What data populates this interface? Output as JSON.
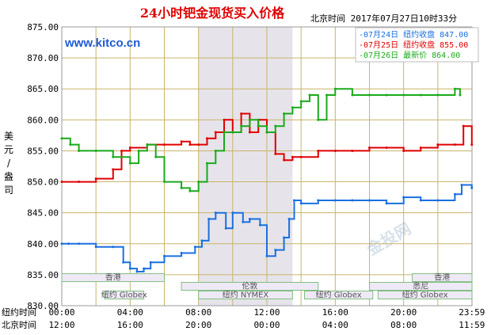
{
  "title": "24小时钯金现货买入价格",
  "datetime_label": "北京时间  2017年07月27日10时33分",
  "site": "www.kitco.cn",
  "y_axis_label": "美元/盎司",
  "x_row_labels": [
    "纽约时间",
    "北京时间"
  ],
  "watermark": "金投网",
  "markets": [
    {
      "name": "香港",
      "start": 0,
      "end": 6
    },
    {
      "name": "伦敦",
      "start": 7,
      "end": 15
    },
    {
      "name": "纽约 Globex",
      "start": 2.5,
      "end": 4.8
    },
    {
      "name": "纽约 NYMEX",
      "start": 8,
      "end": 13.5
    },
    {
      "name": "纽约 Globex",
      "start": 14.2,
      "end": 18.2
    },
    {
      "name": "纽约 Globex",
      "start": 18.5,
      "end": 24
    },
    {
      "name": "悉尼",
      "start": 18,
      "end": 24
    },
    {
      "name": "香港",
      "start": 20.5,
      "end": 24
    }
  ],
  "chart_data": {
    "type": "line",
    "title": "24小时钯金现货买入价格",
    "ylabel": "美元/盎司",
    "ylim": [
      830,
      875
    ],
    "yticks": [
      875,
      870,
      865,
      860,
      855,
      850,
      845,
      840,
      835,
      830
    ],
    "xlim": [
      0,
      24
    ],
    "x_ticks_newyork": [
      "00:00",
      "04:00",
      "08:00",
      "12:00",
      "16:00",
      "20:00",
      "23:59"
    ],
    "x_ticks_beijing": [
      "12:00",
      "16:00",
      "20:00",
      "00:00",
      "04:00",
      "08:00",
      "11:59"
    ],
    "shaded_range": [
      8,
      13.5
    ],
    "grid": true,
    "legend_position": "top-right",
    "series": [
      {
        "name": "07月24日 纽约收盘 847.00",
        "color": "#1a6fe0",
        "x": [
          0,
          0.4,
          1,
          2,
          3,
          3.6,
          4,
          4.4,
          4.8,
          5.2,
          6,
          7,
          7.8,
          8.2,
          8.6,
          9,
          9.6,
          10,
          10.6,
          11,
          11.6,
          12,
          12.5,
          13,
          13.3,
          13.6,
          14,
          15,
          16,
          17,
          18,
          19,
          20,
          21,
          22,
          23,
          23.4,
          23.99
        ],
        "y": [
          840,
          840,
          840,
          839.5,
          839.5,
          837,
          836,
          835.5,
          836,
          837,
          838,
          838.5,
          839.5,
          840.5,
          844,
          845,
          842.5,
          845,
          843.5,
          844,
          843,
          838,
          839,
          841,
          844,
          847,
          846.5,
          847,
          847,
          847,
          847,
          846.5,
          847.5,
          847,
          847,
          848,
          849.5,
          849
        ]
      },
      {
        "name": "07月25日 纽约收盘 855.00",
        "color": "#e00000",
        "x": [
          0,
          1,
          2,
          3,
          3.5,
          4,
          5,
          6,
          7,
          7.5,
          8,
          8.5,
          9,
          9.5,
          10,
          10.5,
          11,
          11.5,
          12,
          12.5,
          13,
          13.5,
          14,
          15,
          16,
          17,
          18,
          19,
          20,
          21,
          22,
          23,
          23.5,
          23.99
        ],
        "y": [
          850,
          850,
          850.5,
          852,
          855,
          855.5,
          856,
          856,
          856.5,
          856,
          856,
          857,
          858,
          860,
          858,
          861,
          858,
          860,
          858,
          854.5,
          853.5,
          854,
          854,
          855,
          855,
          855,
          855.5,
          855.5,
          855,
          855.5,
          856,
          856,
          859,
          856
        ]
      },
      {
        "name": "07月26日 最新价 864.00",
        "color": "#1aaa1a",
        "x": [
          0,
          0.5,
          1,
          2,
          3,
          4,
          4.5,
          5,
          5.5,
          6,
          7,
          7.5,
          8,
          8.5,
          9,
          9.5,
          10,
          10.5,
          11,
          11.5,
          12,
          12.5,
          13,
          13.5,
          14,
          14.5,
          15,
          15.5,
          16,
          17,
          18,
          19,
          20,
          21,
          22,
          23,
          23.3
        ],
        "y": [
          857,
          856,
          855,
          855,
          854,
          853,
          855,
          856,
          854,
          850,
          849,
          848.5,
          850,
          853,
          855,
          858,
          858,
          859,
          860,
          859,
          858,
          859,
          861,
          862,
          863,
          864,
          860,
          864,
          865,
          864,
          864,
          864,
          864,
          864,
          864,
          865,
          864
        ]
      }
    ]
  }
}
